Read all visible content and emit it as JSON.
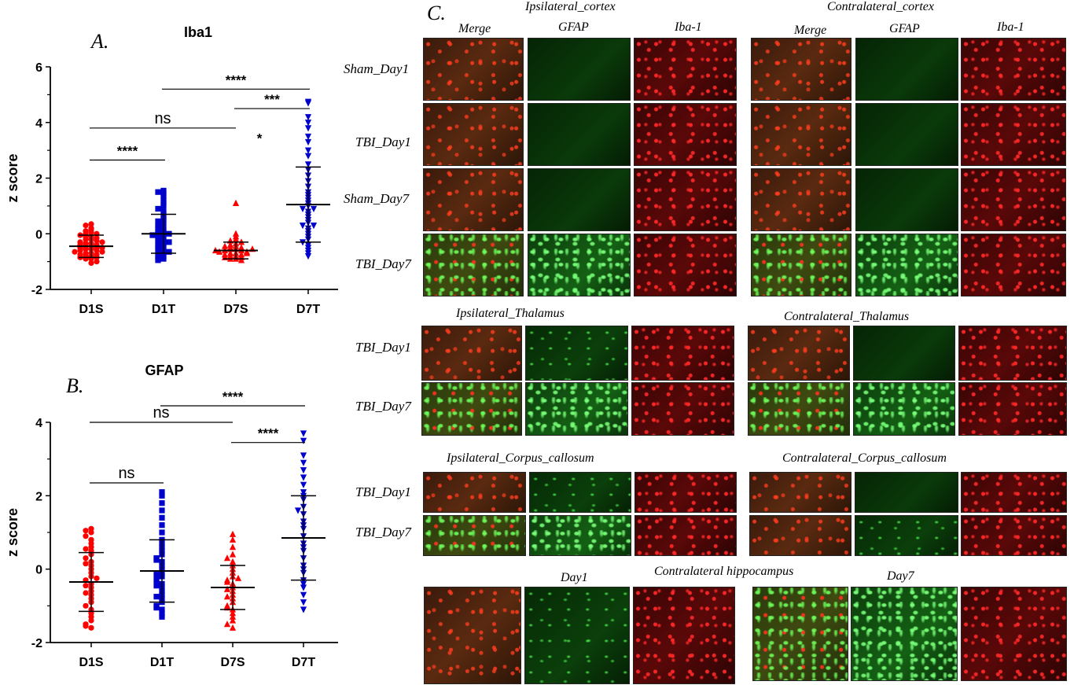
{
  "panels": {
    "a": "A.",
    "b": "B.",
    "c": "C."
  },
  "colors": {
    "sham": "#ff0000",
    "tbi": "#0000cc",
    "bar": "#000000"
  },
  "chart_data": [
    {
      "type": "scatter",
      "title": "Iba1",
      "ylabel": "z score",
      "ylim": [
        -2,
        6
      ],
      "yticks": [
        "6",
        "4",
        "2",
        "0",
        "-2"
      ],
      "categories": [
        "D1S",
        "D1T",
        "D7S",
        "D7T"
      ],
      "markers": [
        "circle",
        "square",
        "triangle-up",
        "triangle-down"
      ],
      "means": [
        -0.45,
        0.0,
        -0.6,
        1.05
      ],
      "sds": [
        0.4,
        0.7,
        0.3,
        1.35
      ],
      "series": [
        {
          "values": [
            0.35,
            0.3,
            0.2,
            0.15,
            0.1,
            0.05,
            0.0,
            0.0,
            -0.05,
            -0.1,
            -0.1,
            -0.15,
            -0.2,
            -0.2,
            -0.25,
            -0.3,
            -0.3,
            -0.35,
            -0.35,
            -0.4,
            -0.4,
            -0.45,
            -0.45,
            -0.5,
            -0.5,
            -0.5,
            -0.55,
            -0.55,
            -0.6,
            -0.6,
            -0.65,
            -0.65,
            -0.7,
            -0.7,
            -0.75,
            -0.75,
            -0.8,
            -0.8,
            -0.85,
            -0.85,
            -0.9,
            -0.9,
            -1.0,
            -1.05
          ]
        },
        {
          "values": [
            1.55,
            1.5,
            1.45,
            1.35,
            1.2,
            1.1,
            1.0,
            0.9,
            0.8,
            0.7,
            0.6,
            0.5,
            0.45,
            0.4,
            0.3,
            0.25,
            0.2,
            0.15,
            0.1,
            0.05,
            0.0,
            0.0,
            -0.05,
            -0.1,
            -0.15,
            -0.2,
            -0.25,
            -0.3,
            -0.35,
            -0.4,
            -0.45,
            -0.5,
            -0.55,
            -0.6,
            -0.65,
            -0.7,
            -0.75,
            -0.8,
            -0.85,
            -0.9,
            -0.95
          ]
        },
        {
          "values": [
            1.1,
            0.0,
            -0.1,
            -0.2,
            -0.25,
            -0.3,
            -0.35,
            -0.4,
            -0.45,
            -0.5,
            -0.5,
            -0.55,
            -0.55,
            -0.6,
            -0.6,
            -0.65,
            -0.65,
            -0.7,
            -0.7,
            -0.75,
            -0.75,
            -0.8,
            -0.8,
            -0.85,
            -0.85,
            -0.9,
            -0.9,
            -0.95,
            -0.55,
            -0.6,
            -0.7,
            -0.45
          ]
        },
        {
          "values": [
            4.75,
            4.7,
            4.2,
            4.0,
            3.8,
            3.5,
            3.3,
            3.0,
            2.8,
            2.5,
            2.3,
            2.1,
            1.9,
            1.7,
            1.5,
            1.3,
            1.2,
            1.1,
            1.0,
            0.9,
            0.8,
            0.7,
            0.6,
            0.5,
            0.4,
            0.3,
            0.2,
            0.1,
            0.0,
            -0.1,
            -0.2,
            -0.3,
            -0.4,
            -0.5,
            -0.6,
            -0.7,
            -0.8,
            1.4,
            0.9,
            0.3
          ]
        }
      ],
      "annotations": [
        {
          "text": "****",
          "from": "D1S",
          "to": "D1T",
          "y": 2.65
        },
        {
          "text": "ns",
          "from": "D1S",
          "to": "D7S",
          "y": 3.8
        },
        {
          "text": "*",
          "from": "D7S",
          "to": "D7S",
          "y": 3.55
        },
        {
          "text": "***",
          "from": "D7S",
          "to": "D7T",
          "y": 4.5
        },
        {
          "text": "****",
          "from": "D1T",
          "to": "D7T",
          "y": 5.2
        }
      ]
    },
    {
      "type": "scatter",
      "title": "GFAP",
      "ylabel": "z score",
      "ylim": [
        -2,
        4
      ],
      "yticks": [
        "4",
        "2",
        "0",
        "-2"
      ],
      "categories": [
        "D1S",
        "D1T",
        "D7S",
        "D7T"
      ],
      "markers": [
        "circle",
        "square",
        "triangle-up",
        "triangle-down"
      ],
      "means": [
        -0.35,
        -0.05,
        -0.5,
        0.85
      ],
      "sds": [
        0.8,
        0.85,
        0.6,
        1.15
      ],
      "series": [
        {
          "values": [
            1.1,
            1.05,
            1.0,
            0.9,
            0.8,
            0.7,
            0.6,
            0.5,
            0.4,
            0.3,
            0.2,
            0.1,
            0.0,
            -0.1,
            -0.2,
            -0.3,
            -0.4,
            -0.5,
            -0.6,
            -0.7,
            -0.8,
            -0.9,
            -1.0,
            -1.1,
            -1.2,
            -1.3,
            -1.4,
            -1.5,
            -1.6,
            -0.25,
            -0.45,
            -0.65,
            0.15,
            0.55,
            -1.55
          ]
        },
        {
          "values": [
            2.1,
            2.0,
            1.8,
            1.6,
            1.4,
            1.2,
            1.0,
            0.8,
            0.6,
            0.5,
            0.4,
            0.3,
            0.2,
            0.1,
            0.0,
            -0.1,
            -0.2,
            -0.3,
            -0.4,
            -0.5,
            -0.6,
            -0.7,
            -0.8,
            -0.9,
            -1.0,
            -1.1,
            -1.2,
            -1.3,
            0.7,
            -0.15,
            -0.45,
            -0.75,
            0.25,
            -1.05
          ]
        },
        {
          "values": [
            0.95,
            0.8,
            0.6,
            0.4,
            0.2,
            0.1,
            0.0,
            -0.1,
            -0.2,
            -0.3,
            -0.4,
            -0.5,
            -0.6,
            -0.7,
            -0.8,
            -0.9,
            -1.0,
            -1.1,
            -1.2,
            -1.3,
            -1.4,
            -1.5,
            -1.6,
            -0.35,
            -0.55,
            -0.75,
            -0.25,
            0.3,
            -1.05
          ]
        },
        {
          "values": [
            3.7,
            3.5,
            3.1,
            2.9,
            2.7,
            2.5,
            2.3,
            2.1,
            1.9,
            1.7,
            1.5,
            1.3,
            1.1,
            0.9,
            0.7,
            0.5,
            0.3,
            0.1,
            -0.1,
            -0.3,
            -0.5,
            -0.7,
            -0.9,
            -1.1,
            1.2,
            0.6,
            0.0,
            -0.4,
            2.0,
            1.6
          ]
        }
      ],
      "annotations": [
        {
          "text": "ns",
          "from": "D1S",
          "to": "D1T",
          "y": 2.35
        },
        {
          "text": "ns",
          "from": "D1S",
          "to": "D7S",
          "y": 4.0
        },
        {
          "text": "****",
          "from": "D7S",
          "to": "D7T",
          "y": 3.45
        },
        {
          "text": "****",
          "from": "D1T",
          "to": "D7T",
          "y": 4.45
        }
      ]
    }
  ],
  "panel_c": {
    "cortex": {
      "left_title": "Ipsilateral_cortex",
      "right_title": "Contralateral_cortex",
      "columns": [
        "Merge",
        "GFAP",
        "Iba-1"
      ],
      "rows": [
        "Sham_Day1",
        "TBI_Day1",
        "Sham_Day7",
        "TBI_Day7"
      ]
    },
    "thalamus": {
      "left_title": "Ipsilateral_Thalamus",
      "right_title": "Contralateral_Thalamus",
      "rows": [
        "TBI_Day1",
        "TBI_Day7"
      ]
    },
    "corpus_callosum": {
      "left_title": "Ipsilateral_Corpus_callosum",
      "right_title": "Contralateral_Corpus_callosum",
      "rows": [
        "TBI_Day1",
        "TBI_Day7"
      ]
    },
    "hippocampus": {
      "title": "Contralateral hippocampus",
      "day1": "Day1",
      "day7": "Day7"
    }
  }
}
